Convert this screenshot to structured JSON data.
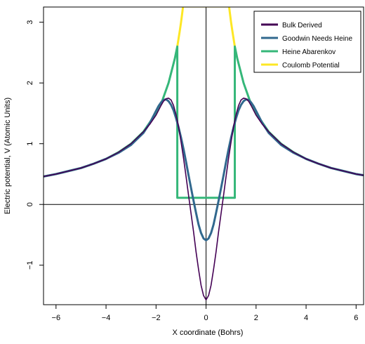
{
  "chart_data": {
    "type": "line",
    "title": "",
    "xlabel": "X coordinate (Bohrs)",
    "ylabel": "Electric potential, V (Atomic Units)",
    "xlim": [
      -6.5,
      6.3
    ],
    "ylim": [
      -1.65,
      3.25
    ],
    "x_ticks": [
      -6,
      -4,
      -2,
      0,
      2,
      4,
      6
    ],
    "x_tick_labels": [
      "−6",
      "−4",
      "−2",
      "0",
      "2",
      "4",
      "6"
    ],
    "y_ticks": [
      -1,
      0,
      1,
      2,
      3
    ],
    "y_tick_labels": [
      "−1",
      "0",
      "1",
      "2",
      "3"
    ],
    "reference_lines": {
      "x": 0,
      "y": 0
    },
    "grid": false,
    "legend_position": "top-right",
    "series": [
      {
        "name": "Bulk Derived",
        "color": "#440154",
        "x": [
          -6.5,
          -6,
          -5.5,
          -5,
          -4.5,
          -4,
          -3.5,
          -3,
          -2.5,
          -2.25,
          -2,
          -1.9,
          -1.8,
          -1.7,
          -1.6,
          -1.5,
          -1.4,
          -1.3,
          -1.2,
          -1.1,
          -1.0,
          -0.9,
          -0.8,
          -0.7,
          -0.6,
          -0.5,
          -0.4,
          -0.3,
          -0.2,
          -0.1,
          0,
          0.1,
          0.2,
          0.3,
          0.4,
          0.5,
          0.6,
          0.7,
          0.8,
          0.9,
          1.0,
          1.1,
          1.2,
          1.3,
          1.4,
          1.5,
          1.6,
          1.7,
          1.8,
          1.9,
          2.0,
          2.25,
          2.5,
          3,
          3.5,
          4,
          4.5,
          5,
          5.5,
          6,
          6.3
        ],
        "y": [
          0.46,
          0.5,
          0.55,
          0.6,
          0.67,
          0.75,
          0.86,
          1.0,
          1.2,
          1.32,
          1.47,
          1.55,
          1.63,
          1.7,
          1.74,
          1.75,
          1.72,
          1.63,
          1.48,
          1.28,
          1.03,
          0.76,
          0.46,
          0.15,
          -0.15,
          -0.45,
          -0.78,
          -1.07,
          -1.33,
          -1.5,
          -1.57,
          -1.5,
          -1.33,
          -1.07,
          -0.78,
          -0.45,
          -0.15,
          0.15,
          0.46,
          0.76,
          1.03,
          1.28,
          1.48,
          1.63,
          1.72,
          1.75,
          1.74,
          1.7,
          1.63,
          1.55,
          1.47,
          1.32,
          1.2,
          1.0,
          0.86,
          0.75,
          0.67,
          0.6,
          0.55,
          0.5,
          0.48
        ]
      },
      {
        "name": "Goodwin Needs Heine",
        "color": "#31688E",
        "x": [
          -6.5,
          -6,
          -5.5,
          -5,
          -4.5,
          -4,
          -3.5,
          -3,
          -2.5,
          -2.25,
          -2,
          -1.9,
          -1.8,
          -1.7,
          -1.6,
          -1.5,
          -1.4,
          -1.3,
          -1.2,
          -1.1,
          -1.0,
          -0.9,
          -0.8,
          -0.7,
          -0.6,
          -0.5,
          -0.4,
          -0.3,
          -0.2,
          -0.1,
          0,
          0.1,
          0.2,
          0.3,
          0.4,
          0.5,
          0.6,
          0.7,
          0.8,
          0.9,
          1.0,
          1.1,
          1.2,
          1.3,
          1.4,
          1.5,
          1.6,
          1.7,
          1.8,
          1.9,
          2.0,
          2.25,
          2.5,
          3,
          3.5,
          4,
          4.5,
          5,
          5.5,
          6,
          6.3
        ],
        "y": [
          0.46,
          0.5,
          0.55,
          0.6,
          0.67,
          0.75,
          0.85,
          0.98,
          1.18,
          1.34,
          1.54,
          1.62,
          1.68,
          1.72,
          1.73,
          1.7,
          1.64,
          1.55,
          1.42,
          1.27,
          1.1,
          0.91,
          0.7,
          0.48,
          0.27,
          0.06,
          -0.14,
          -0.33,
          -0.47,
          -0.56,
          -0.59,
          -0.56,
          -0.47,
          -0.33,
          -0.14,
          0.06,
          0.27,
          0.48,
          0.7,
          0.91,
          1.1,
          1.27,
          1.42,
          1.55,
          1.64,
          1.7,
          1.73,
          1.72,
          1.68,
          1.62,
          1.54,
          1.34,
          1.18,
          0.98,
          0.85,
          0.75,
          0.67,
          0.6,
          0.55,
          0.5,
          0.48
        ]
      },
      {
        "name": "Heine Abarenkov",
        "color": "#35B779",
        "x": [
          -6.5,
          -6,
          -5.5,
          -5,
          -4.5,
          -4,
          -3.5,
          -3,
          -2.5,
          -2,
          -1.75,
          -1.5,
          -1.25,
          -1.15,
          -1.15,
          1.15,
          1.15,
          1.25,
          1.5,
          1.75,
          2,
          2.5,
          3,
          3.5,
          4,
          4.5,
          5,
          5.5,
          6,
          6.3
        ],
        "y": [
          0.46,
          0.5,
          0.55,
          0.6,
          0.67,
          0.75,
          0.86,
          1.0,
          1.2,
          1.5,
          1.71,
          2.0,
          2.4,
          2.6,
          0.11,
          0.11,
          2.6,
          2.4,
          2.0,
          1.71,
          1.5,
          1.2,
          1.0,
          0.86,
          0.75,
          0.67,
          0.6,
          0.55,
          0.5,
          0.48
        ]
      },
      {
        "name": "Coulomb Potential",
        "color": "#FDE725",
        "x": [
          -1.15,
          -1.1,
          -1.05,
          -1.0,
          -0.95,
          -0.92,
          0.92,
          0.95,
          1.0,
          1.05,
          1.1,
          1.15
        ],
        "y": [
          2.6,
          2.73,
          2.86,
          3.0,
          3.16,
          3.26,
          3.26,
          3.16,
          3.0,
          2.86,
          2.73,
          2.6
        ]
      }
    ]
  }
}
